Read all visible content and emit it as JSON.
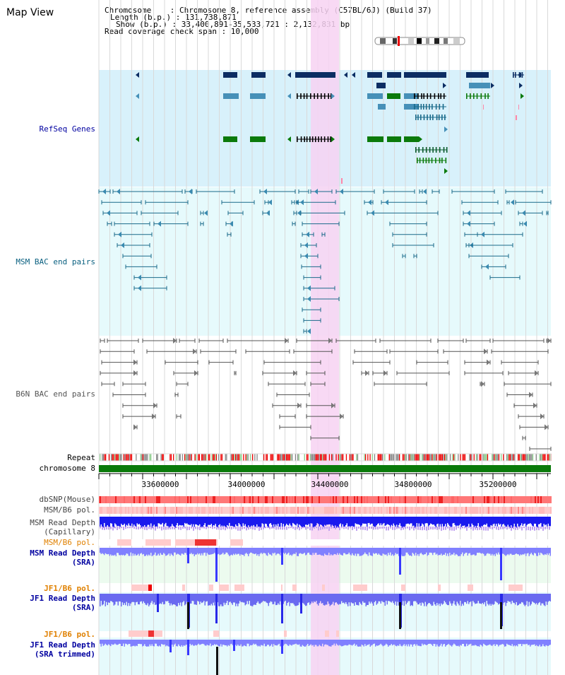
{
  "header": {
    "title": "Map View",
    "info_lines": [
      "Chromosome    : Chromosome 8, reference assembly (C57BL/6J) (Build 37)",
      "Length (b.p.) : 131,738,871",
      "Show (b.p.) : 33,400,891-35,533,721 : 2,132,831 bp",
      "Read coverage check span : 10,000"
    ]
  },
  "tracks": {
    "refseq": "RefSeq Genes",
    "msm_bac": "MSM BAC end pairs",
    "b6n_bac": "B6N BAC end pairs",
    "repeat": "Repeat",
    "chromosome": "chromosome 8",
    "dbsnp": "dbSNP(Mouse)",
    "msm_b6_pol": "MSM/B6 pol.",
    "msm_depth_cap": [
      "MSM Read Depth",
      "(Capillary)"
    ],
    "msm_b6_pol_sra": "MSM/B6 pol.",
    "msm_depth_sra": [
      "MSM Read Depth",
      "(SRA)"
    ],
    "jf1_b6_pol": "JF1/B6 pol.",
    "jf1_depth_sra": [
      "JF1 Read Depth",
      "(SRA)"
    ],
    "jf1_b6_pol2": "JF1/B6 pol.",
    "jf1_depth_trim": [
      "JF1 Read Depth",
      "(SRA trimmed)"
    ]
  },
  "axis": {
    "ticks": [
      "33600000",
      "34000000",
      "34400000",
      "34800000",
      "35200000"
    ]
  },
  "colors": {
    "highlight": "#f7d2f2",
    "refseq_bg": "#d8f1fb",
    "bac_bg": "#e6fafc",
    "gene_dark": "#0c2d63",
    "gene_mid": "#4690b8",
    "gene_green": "#0b7a0b",
    "bac_line": "#1a6a8a",
    "b6n_line": "#555555",
    "chrom": "#0a7a0a",
    "depth_blue": "#0000ff",
    "depth_light": "#8080ff",
    "label_navy": "#0000a0",
    "label_orange": "#e08000",
    "label_teal": "#0a6080"
  }
}
